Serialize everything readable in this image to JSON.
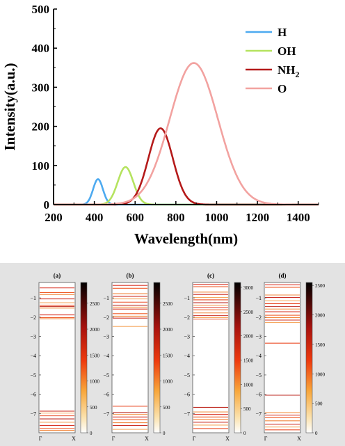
{
  "chart_data": [
    {
      "type": "line",
      "xlabel": "Wavelength(nm)",
      "ylabel": "Intensity(a.u.)",
      "xlim": [
        200,
        1500
      ],
      "ylim": [
        0,
        500
      ],
      "xticks": [
        "200",
        "400",
        "600",
        "800",
        "1000",
        "1200",
        "1400"
      ],
      "yticks": [
        "0",
        "100",
        "200",
        "300",
        "400",
        "500"
      ],
      "legend_position": "top-right",
      "series": [
        {
          "name": "H",
          "color": "#4daaf0",
          "center": 418,
          "amplitude": 65,
          "width": 24
        },
        {
          "name": "OH",
          "color": "#b5e35f",
          "center": 553,
          "amplitude": 96,
          "width": 38
        },
        {
          "name": "NH2",
          "color": "#b51a1a",
          "center": 725,
          "amplitude": 195,
          "width": 60
        },
        {
          "name": "O",
          "color": "#f2a2a0",
          "center": 888,
          "amplitude": 362,
          "width": 118
        }
      ]
    },
    {
      "type": "heatmap",
      "panels": [
        {
          "label": "(a)",
          "x_ticks": [
            "Γ",
            "X"
          ],
          "y_ticks": [
            "-1",
            "-2",
            "-3",
            "-4",
            "-5",
            "-6",
            "-7"
          ],
          "ylim": [
            -8.0,
            -0.2
          ],
          "colorbar_max": 2900,
          "colorbar_ticks": [
            "0",
            "500",
            "1000",
            "1500",
            "2000",
            "2500"
          ],
          "bands": [
            -0.48,
            -0.72,
            -0.82,
            -1.05,
            -1.25,
            -1.38,
            -1.45,
            -1.53,
            -1.88,
            -2.02,
            -2.08,
            -6.88,
            -6.98,
            -7.12,
            -7.28,
            -7.45,
            -7.62,
            -7.78,
            -7.88
          ]
        },
        {
          "label": "(b)",
          "x_ticks": [
            "Γ",
            "X"
          ],
          "y_ticks": [
            "-1",
            "-2",
            "-3",
            "-4",
            "-5",
            "-6",
            "-7"
          ],
          "ylim": [
            -8.0,
            -0.2
          ],
          "colorbar_max": 2900,
          "colorbar_ticks": [
            "0",
            "500",
            "1000",
            "1500",
            "2000",
            "2500"
          ],
          "bands": [
            -0.35,
            -0.5,
            -0.78,
            -0.92,
            -1.05,
            -1.22,
            -1.38,
            -1.48,
            -1.58,
            -1.82,
            -1.95,
            -2.05,
            -2.48,
            -6.62,
            -6.95,
            -7.05,
            -7.18,
            -7.32,
            -7.48,
            -7.62,
            -7.82
          ]
        },
        {
          "label": "(c)",
          "x_ticks": [
            "Γ",
            "X"
          ],
          "y_ticks": [
            "-1",
            "-2",
            "-3",
            "-4",
            "-5",
            "-6",
            "-7"
          ],
          "ylim": [
            -8.0,
            -0.2
          ],
          "colorbar_max": 3100,
          "colorbar_ticks": [
            "0",
            "500",
            "1000",
            "1500",
            "2000",
            "2500",
            "3000"
          ],
          "bands": [
            -0.3,
            -0.42,
            -0.7,
            -0.82,
            -0.98,
            -1.1,
            -1.25,
            -1.38,
            -1.5,
            -1.62,
            -1.78,
            -1.92,
            -2.02,
            -2.1,
            -6.68,
            -6.92,
            -7.05,
            -7.18,
            -7.3,
            -7.45,
            -7.6,
            -7.78
          ]
        },
        {
          "label": "(d)",
          "x_ticks": [
            "Γ",
            "X"
          ],
          "y_ticks": [
            "-1",
            "-2",
            "-3",
            "-4",
            "-5",
            "-6",
            "-7"
          ],
          "ylim": [
            -8.0,
            -0.2
          ],
          "colorbar_max": 2550,
          "colorbar_ticks": [
            "0",
            "500",
            "1000",
            "1500",
            "2000",
            "2500"
          ],
          "bands": [
            -0.32,
            -0.45,
            -0.85,
            -0.98,
            -1.15,
            -1.3,
            -1.45,
            -1.58,
            -1.72,
            -1.9,
            -2.02,
            -2.15,
            -2.28,
            -3.35,
            -6.05,
            -6.95,
            -7.08,
            -7.22,
            -7.38,
            -7.55,
            -7.7,
            -7.85
          ]
        }
      ]
    }
  ]
}
